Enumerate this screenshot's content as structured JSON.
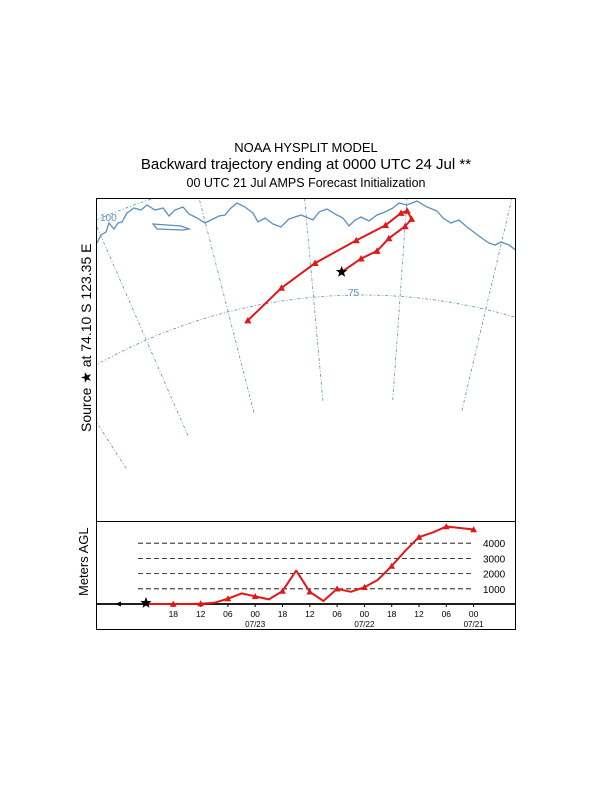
{
  "title": {
    "line1": "NOAA HYSPLIT MODEL",
    "line2": "Backward trajectory ending at 0000 UTC 24 Jul **",
    "line3": "00 UTC 21 Jul    AMPS  Forecast Initialization"
  },
  "source_label": "Source ★ at  74.10 S  123.35 E",
  "colors": {
    "trajectory": "#e01818",
    "grid": "#5a8fbf",
    "coast": "#5a8fbf",
    "axis": "#000000"
  },
  "map": {
    "lat_label": "75",
    "lon_label": "100"
  },
  "chart_data": [
    {
      "type": "line",
      "title": "Backward trajectory ending at 0000 UTC 24 Jul **",
      "description_unit": "map (latitude S, longitude E)",
      "source": {
        "lat": -74.1,
        "lon": 123.35
      },
      "series": [
        {
          "name": "trajectory",
          "points": [
            {
              "lat": -74.1,
              "lon": 123.35
            },
            {
              "lat": -73.6,
              "lon": 125.5
            },
            {
              "lat": -73.3,
              "lon": 127.2
            },
            {
              "lat": -72.8,
              "lon": 128.4
            },
            {
              "lat": -72.3,
              "lon": 130.0
            },
            {
              "lat": -72.0,
              "lon": 130.6
            },
            {
              "lat": -71.7,
              "lon": 130.1
            },
            {
              "lat": -71.8,
              "lon": 129.5
            },
            {
              "lat": -72.3,
              "lon": 128.0
            },
            {
              "lat": -72.9,
              "lon": 125.0
            },
            {
              "lat": -73.7,
              "lon": 120.5
            },
            {
              "lat": -74.5,
              "lon": 116.5
            },
            {
              "lat": -75.5,
              "lon": 112.0
            }
          ]
        }
      ]
    },
    {
      "type": "line",
      "ylabel": "Meters AGL",
      "ylim": [
        0,
        5000
      ],
      "yticks": [
        1000,
        2000,
        3000,
        4000
      ],
      "ytick_labels": [
        "1000",
        "2000",
        "3000",
        "4000"
      ],
      "x_hours_back": [
        0,
        3,
        6,
        9,
        12,
        15,
        18,
        21,
        24,
        27,
        30,
        33,
        36,
        39,
        42,
        45,
        48,
        51,
        54,
        57,
        60,
        63,
        66,
        69,
        72
      ],
      "xtick_hours_back": [
        6,
        12,
        18,
        24,
        30,
        36,
        42,
        48,
        54,
        60,
        66,
        72
      ],
      "xtick_labels": [
        "18",
        "12",
        "06",
        "00",
        "18",
        "12",
        "06",
        "00",
        "18",
        "12",
        "06",
        "00"
      ],
      "date_labels": [
        {
          "hour_back": 24,
          "label": "07/23"
        },
        {
          "hour_back": 48,
          "label": "07/22"
        },
        {
          "hour_back": 72,
          "label": "07/21"
        }
      ],
      "series": [
        {
          "name": "trajectory height",
          "values": [
            0,
            0,
            0,
            0,
            20,
            80,
            350,
            700,
            500,
            300,
            850,
            2200,
            800,
            200,
            1000,
            800,
            1100,
            1600,
            2500,
            3500,
            4400,
            4700,
            5100,
            5000,
            4900
          ]
        }
      ]
    }
  ]
}
